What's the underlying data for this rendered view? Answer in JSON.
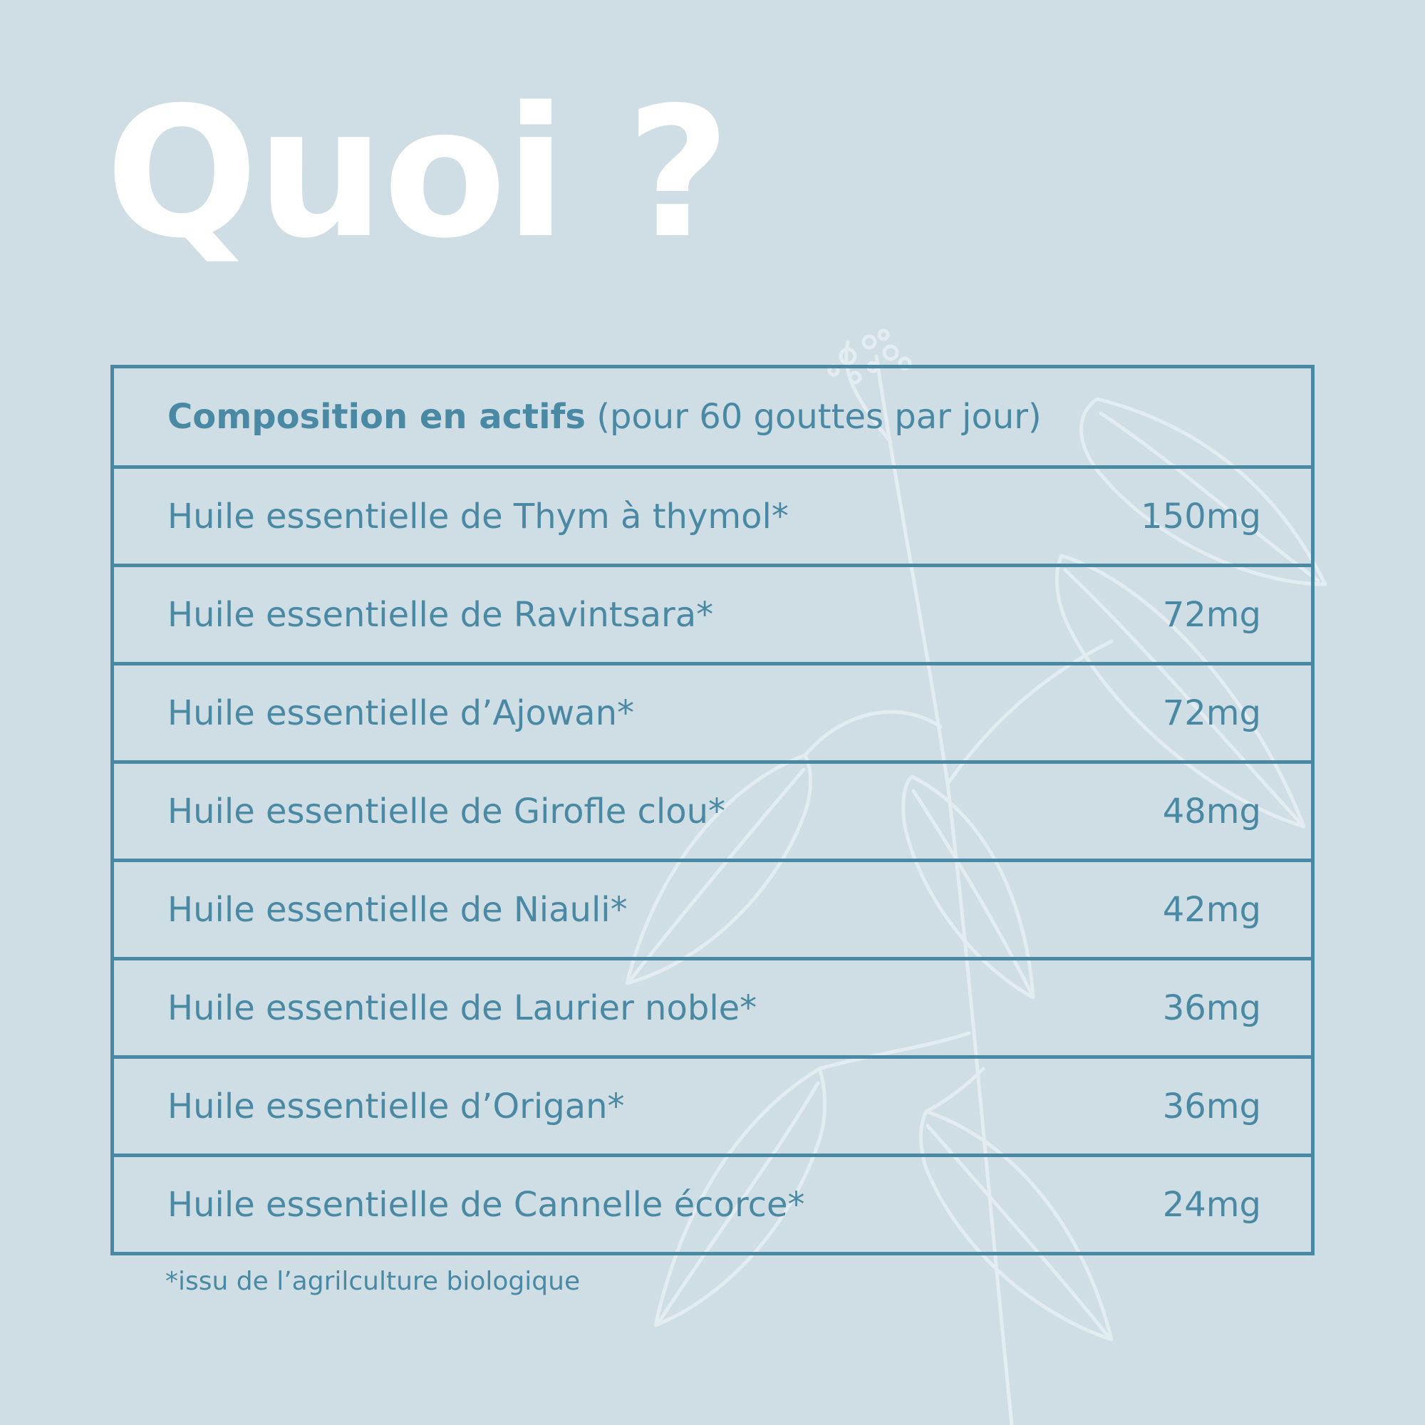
{
  "title": "Quoi ?",
  "table": {
    "header": {
      "bold": "Composition en actifs",
      "normal": " (pour 60 gouttes par jour)"
    },
    "rows": [
      {
        "name": "Huile essentielle de Thym à thymol*",
        "value": "150mg"
      },
      {
        "name": "Huile essentielle de Ravintsara*",
        "value": "72mg"
      },
      {
        "name": "Huile essentielle d’Ajowan*",
        "value": "72mg"
      },
      {
        "name": "Huile essentielle de Girofle clou*",
        "value": "48mg"
      },
      {
        "name": "Huile essentielle de Niauli*",
        "value": "42mg"
      },
      {
        "name": "Huile essentielle de Laurier noble*",
        "value": "36mg"
      },
      {
        "name": "Huile essentielle d’Origan*",
        "value": "36mg"
      },
      {
        "name": "Huile essentielle de Cannelle écorce*",
        "value": "24mg"
      }
    ]
  },
  "footnote": "*issu de l’agrilculture biologique",
  "colors": {
    "background": "#cfdde5",
    "accent": "#4a89a3",
    "title": "#ffffff",
    "decoration": "#e6eef2"
  }
}
